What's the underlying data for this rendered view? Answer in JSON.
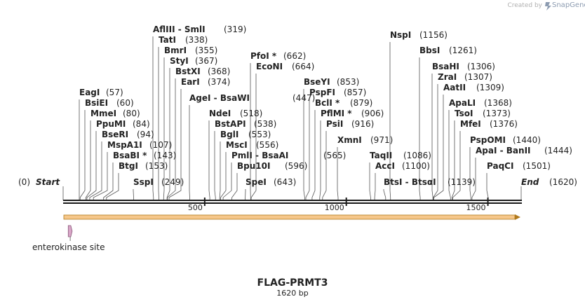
{
  "credit": {
    "prefix": "Created by",
    "brand": "SnapGene",
    "icon": "snapgene-logo-icon"
  },
  "sequence": {
    "name": "FLAG-PRMT3",
    "length_label": "1620 bp",
    "length": 1620
  },
  "ends": {
    "start": {
      "label": "Start",
      "pos_label": "(0)"
    },
    "end": {
      "label": "End",
      "pos_label": "(1620)"
    }
  },
  "ruler_ticks": [
    {
      "pos": 500,
      "label": "500"
    },
    {
      "pos": 1000,
      "label": "1000"
    },
    {
      "pos": 1500,
      "label": "1500"
    }
  ],
  "enzymes": [
    {
      "name": "EagI",
      "pos": 57,
      "pos_label": "(57)",
      "row": 0
    },
    {
      "name": "BsiEI",
      "pos": 60,
      "pos_label": "(60)",
      "row": 1
    },
    {
      "name": "MmeI",
      "pos": 80,
      "pos_label": "(80)",
      "row": 2
    },
    {
      "name": "PpuMI",
      "pos": 84,
      "pos_label": "(84)",
      "row": 3
    },
    {
      "name": "BseRI",
      "pos": 94,
      "pos_label": "(94)",
      "row": 4
    },
    {
      "name": "MspA1I",
      "pos": 107,
      "pos_label": "(107)",
      "row": 5
    },
    {
      "name": "BsaBI *",
      "pos": 143,
      "pos_label": "(143)",
      "row": 6
    },
    {
      "name": "BtgI",
      "pos": 153,
      "pos_label": "(153)",
      "row": 7
    },
    {
      "name": "SspI",
      "pos": 249,
      "pos_label": "(249)",
      "row": 8
    },
    {
      "name": "AflIII - SmlI",
      "pos": 319,
      "pos_label": "(319)",
      "row": 9
    },
    {
      "name": "TatI",
      "pos": 338,
      "pos_label": "(338)",
      "row": 10
    },
    {
      "name": "BmrI",
      "pos": 355,
      "pos_label": "(355)",
      "row": 11
    },
    {
      "name": "StyI",
      "pos": 367,
      "pos_label": "(367)",
      "row": 12
    },
    {
      "name": "BstXI",
      "pos": 368,
      "pos_label": "(368)",
      "row": 13
    },
    {
      "name": "EarI",
      "pos": 374,
      "pos_label": "(374)",
      "row": 14
    },
    {
      "name": "AgeI - BsaWI",
      "pos": 447,
      "pos_label": "(447)",
      "row": 15
    },
    {
      "name": "NdeI",
      "pos": 518,
      "pos_label": "(518)",
      "row": 16
    },
    {
      "name": "BstAPI",
      "pos": 538,
      "pos_label": "(538)",
      "row": 17
    },
    {
      "name": "BglI",
      "pos": 553,
      "pos_label": "(553)",
      "row": 18
    },
    {
      "name": "MscI",
      "pos": 556,
      "pos_label": "(556)",
      "row": 19
    },
    {
      "name": "PmlI - BsaAI",
      "pos": 565,
      "pos_label": "(565)",
      "row": 20
    },
    {
      "name": "Bpu10I",
      "pos": 596,
      "pos_label": "(596)",
      "row": 21
    },
    {
      "name": "SpeI",
      "pos": 643,
      "pos_label": "(643)",
      "row": 22
    },
    {
      "name": "PfoI *",
      "pos": 662,
      "pos_label": "(662)",
      "row": 23
    },
    {
      "name": "EcoNI",
      "pos": 664,
      "pos_label": "(664)",
      "row": 24
    },
    {
      "name": "BseYI",
      "pos": 853,
      "pos_label": "(853)",
      "row": 25
    },
    {
      "name": "PspFI",
      "pos": 857,
      "pos_label": "(857)",
      "row": 26
    },
    {
      "name": "BclI *",
      "pos": 879,
      "pos_label": "(879)",
      "row": 27
    },
    {
      "name": "PflMI *",
      "pos": 906,
      "pos_label": "(906)",
      "row": 28
    },
    {
      "name": "PsiI",
      "pos": 916,
      "pos_label": "(916)",
      "row": 29
    },
    {
      "name": "XmnI",
      "pos": 971,
      "pos_label": "(971)",
      "row": 30
    },
    {
      "name": "TaqII",
      "pos": 1086,
      "pos_label": "(1086)",
      "row": 31
    },
    {
      "name": "AccI",
      "pos": 1100,
      "pos_label": "(1100)",
      "row": 32
    },
    {
      "name": "BtsI - BtsαI",
      "pos": 1139,
      "pos_label": "(1139)",
      "row": 33
    },
    {
      "name": "NspI",
      "pos": 1156,
      "pos_label": "(1156)",
      "row": 34
    },
    {
      "name": "BbsI",
      "pos": 1261,
      "pos_label": "(1261)",
      "row": 35
    },
    {
      "name": "BsaHI",
      "pos": 1306,
      "pos_label": "(1306)",
      "row": 36
    },
    {
      "name": "ZraI",
      "pos": 1307,
      "pos_label": "(1307)",
      "row": 37
    },
    {
      "name": "AatII",
      "pos": 1309,
      "pos_label": "(1309)",
      "row": 38
    },
    {
      "name": "ApaLI",
      "pos": 1368,
      "pos_label": "(1368)",
      "row": 39
    },
    {
      "name": "TsoI",
      "pos": 1373,
      "pos_label": "(1373)",
      "row": 40
    },
    {
      "name": "MfeI",
      "pos": 1376,
      "pos_label": "(1376)",
      "row": 41
    },
    {
      "name": "PspOMI",
      "pos": 1440,
      "pos_label": "(1440)",
      "row": 42
    },
    {
      "name": "ApaI - BanII",
      "pos": 1444,
      "pos_label": "(1444)",
      "row": 43
    },
    {
      "name": "PaqCI",
      "pos": 1501,
      "pos_label": "(1501)",
      "row": 44
    }
  ],
  "features": [
    {
      "name": "enterokinase site",
      "start": 18,
      "end": 32,
      "color": "#d9a6c8"
    }
  ],
  "colors": {
    "backbone": "#1a1a1a",
    "arrow_fill": "#f6c78a",
    "arrow_stroke": "#b07a1e",
    "leader": "#555555",
    "feature": "#d9a6c8"
  }
}
